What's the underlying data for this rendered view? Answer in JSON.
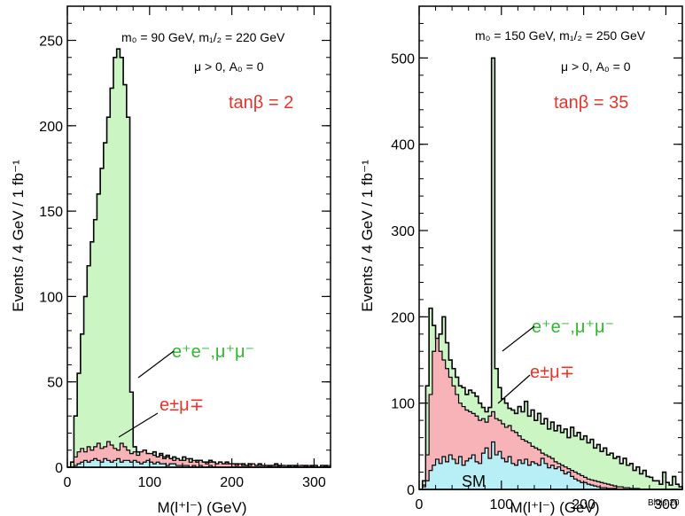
{
  "chart_data": [
    {
      "type": "histogram",
      "xlabel": "M(l⁺l⁻) (GeV)",
      "ylabel": "Events / 4 GeV / 1 fb⁻¹",
      "xlim": [
        0,
        320
      ],
      "ylim": [
        0,
        270
      ],
      "xticks": [
        0,
        100,
        200,
        300
      ],
      "yticks": [
        0,
        50,
        100,
        150,
        200,
        250
      ],
      "bin_width": 4,
      "annotations": {
        "params": "m₀ = 90 GeV, m₁/₂ = 220 GeV",
        "sign": "μ > 0, A₀ = 0",
        "tanb": "tanβ = 2",
        "label_sf": "e⁺e⁻,μ⁺μ⁻",
        "label_of": "e^±μ^∓",
        "label_sm": ""
      },
      "colors": {
        "sf": "#ccf5c4",
        "of": "#f7b3b8",
        "sm": "#b8eef5"
      },
      "series": [
        {
          "key": "sm",
          "values": [
            0,
            0,
            1,
            2,
            3,
            4,
            3,
            4,
            5,
            4,
            3,
            5,
            4,
            3,
            4,
            5,
            3,
            4,
            4,
            3,
            4,
            3,
            2,
            3,
            4,
            3,
            2,
            3,
            2,
            2,
            1,
            2,
            2,
            1,
            1,
            1,
            1,
            0,
            1,
            0,
            1,
            0,
            0,
            1,
            0,
            0,
            0,
            0,
            0,
            0,
            0,
            0,
            0,
            0,
            0,
            0,
            0,
            0,
            0,
            0,
            0,
            0,
            0,
            0,
            0,
            0,
            0,
            0,
            0,
            0,
            0,
            0,
            0,
            0,
            0,
            0,
            0,
            0,
            0,
            0
          ]
        },
        {
          "key": "of",
          "values": [
            0,
            0,
            6,
            9,
            11,
            9,
            12,
            10,
            12,
            14,
            11,
            12,
            15,
            13,
            11,
            10,
            14,
            12,
            10,
            8,
            9,
            7,
            9,
            10,
            8,
            8,
            7,
            6,
            7,
            5,
            6,
            5,
            4,
            5,
            4,
            4,
            5,
            3,
            4,
            3,
            4,
            3,
            2,
            3,
            3,
            2,
            3,
            2,
            2,
            2,
            2,
            1,
            2,
            1,
            1,
            1,
            2,
            1,
            1,
            1,
            1,
            0,
            1,
            1,
            0,
            1,
            1,
            0,
            1,
            0,
            1,
            1,
            0,
            1,
            0,
            1,
            0,
            1,
            0,
            1
          ]
        },
        {
          "key": "sf",
          "values": [
            0,
            3,
            30,
            55,
            78,
            100,
            118,
            132,
            145,
            160,
            175,
            190,
            205,
            222,
            240,
            245,
            240,
            224,
            205,
            44,
            12,
            9,
            8,
            10,
            8,
            7,
            9,
            6,
            8,
            6,
            7,
            5,
            6,
            5,
            4,
            6,
            4,
            5,
            3,
            4,
            4,
            3,
            3,
            4,
            3,
            2,
            3,
            2,
            3,
            2,
            2,
            2,
            1,
            2,
            1,
            2,
            1,
            1,
            2,
            1,
            1,
            1,
            1,
            2,
            1,
            1,
            0,
            1,
            1,
            1,
            0,
            1,
            1,
            0,
            1,
            1,
            0,
            1,
            1,
            0
          ]
        }
      ]
    },
    {
      "type": "histogram",
      "xlabel": "M(l⁺l⁻) (GeV)",
      "ylabel": "Events / 4 GeV / 1 fb⁻¹",
      "xlim": [
        0,
        320
      ],
      "ylim": [
        0,
        560
      ],
      "xticks": [
        0,
        100,
        200,
        300
      ],
      "yticks": [
        0,
        100,
        200,
        300,
        400,
        500
      ],
      "bin_width": 4,
      "annotations": {
        "params": "m₀ = 150 GeV, m₁/₂ = 250 GeV",
        "sign": "μ > 0, A₀ = 0",
        "tanb": "tanβ = 35",
        "label_sf": "e⁺e⁻,μ⁺μ⁻",
        "label_of": "e^±μ^∓",
        "label_sm": "SM",
        "footer": "Blois 20"
      },
      "colors": {
        "sf": "#ccf5c4",
        "of": "#f7b3b8",
        "sm": "#b8eef5"
      },
      "series": [
        {
          "key": "sm",
          "values": [
            0,
            3,
            10,
            22,
            28,
            35,
            30,
            38,
            32,
            40,
            35,
            30,
            38,
            28,
            33,
            36,
            40,
            32,
            30,
            42,
            48,
            36,
            55,
            40,
            44,
            36,
            32,
            38,
            30,
            28,
            34,
            30,
            35,
            28,
            32,
            30,
            28,
            36,
            30,
            25,
            28,
            24,
            26,
            22,
            18,
            20,
            15,
            12,
            10,
            8,
            8,
            6,
            5,
            4,
            3,
            2,
            2,
            1,
            1,
            1,
            0,
            0,
            0,
            0,
            0,
            0,
            0,
            0,
            0,
            0,
            0,
            0,
            0,
            0,
            0,
            0,
            0,
            0,
            0,
            0
          ]
        },
        {
          "key": "of",
          "values": [
            0,
            5,
            40,
            110,
            160,
            175,
            160,
            150,
            140,
            130,
            120,
            110,
            100,
            96,
            92,
            90,
            88,
            85,
            80,
            82,
            78,
            85,
            90,
            82,
            80,
            76,
            72,
            74,
            68,
            66,
            62,
            58,
            56,
            54,
            50,
            48,
            46,
            42,
            40,
            38,
            36,
            32,
            30,
            28,
            26,
            24,
            22,
            20,
            18,
            16,
            14,
            12,
            11,
            10,
            9,
            8,
            7,
            6,
            5,
            4,
            3,
            3,
            2,
            2,
            1,
            1,
            1,
            0,
            0,
            0,
            0,
            0,
            0,
            0,
            0,
            0,
            0,
            0,
            0,
            0
          ]
        },
        {
          "key": "sf",
          "values": [
            0,
            10,
            120,
            210,
            190,
            175,
            180,
            200,
            170,
            150,
            140,
            130,
            120,
            118,
            110,
            115,
            112,
            108,
            100,
            95,
            90,
            95,
            500,
            140,
            118,
            105,
            100,
            94,
            92,
            88,
            96,
            90,
            102,
            85,
            92,
            80,
            88,
            76,
            82,
            70,
            78,
            68,
            74,
            66,
            70,
            60,
            72,
            62,
            66,
            58,
            62,
            54,
            58,
            48,
            52,
            44,
            48,
            40,
            42,
            36,
            38,
            30,
            36,
            28,
            30,
            22,
            26,
            18,
            22,
            15,
            14,
            10,
            10,
            6,
            20,
            8,
            5,
            15,
            6,
            3
          ]
        }
      ]
    }
  ]
}
